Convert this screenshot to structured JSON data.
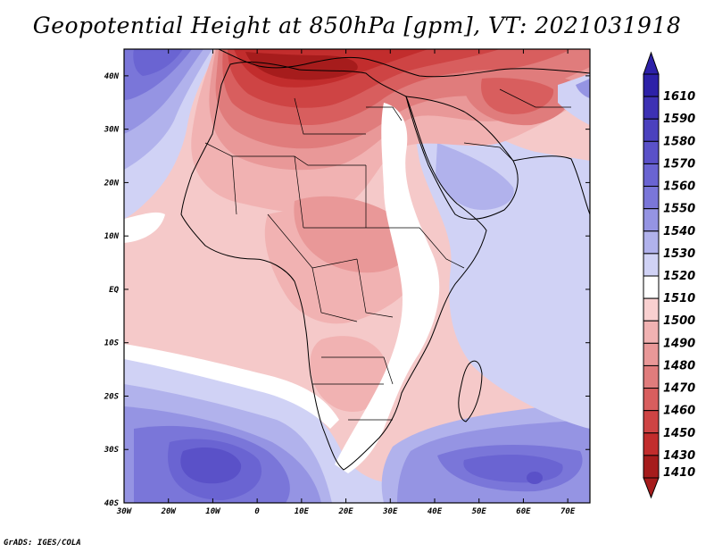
{
  "title": "Geopotential Height at 850hPa [gpm], VT: 2021031918",
  "credit": "GrADS: IGES/COLA",
  "map": {
    "lat_labels": [
      "40N",
      "30N",
      "20N",
      "10N",
      "EQ",
      "10S",
      "20S",
      "30S",
      "40S"
    ],
    "lon_labels": [
      "30W",
      "20W",
      "10W",
      "0",
      "10E",
      "20E",
      "30E",
      "40E",
      "50E",
      "60E",
      "70E"
    ],
    "lat_range": [
      -40,
      45
    ],
    "lon_range": [
      -30,
      75
    ]
  },
  "colorbar": {
    "levels": [
      {
        "label": "1610",
        "color": "#2d21a8"
      },
      {
        "label": "1590",
        "color": "#3d31b4"
      },
      {
        "label": "1580",
        "color": "#4b41be"
      },
      {
        "label": "1570",
        "color": "#5a51c8"
      },
      {
        "label": "1560",
        "color": "#6a64d2"
      },
      {
        "label": "1550",
        "color": "#7a76d9"
      },
      {
        "label": "1540",
        "color": "#9594e3"
      },
      {
        "label": "1530",
        "color": "#b1b2ec"
      },
      {
        "label": "1520",
        "color": "#d0d2f5"
      },
      {
        "label": "1510",
        "color": "#ffffff"
      },
      {
        "label": "1500",
        "color": "#f9d0d0"
      },
      {
        "label": "1490",
        "color": "#f1b2b2"
      },
      {
        "label": "1480",
        "color": "#e99898"
      },
      {
        "label": "1470",
        "color": "#e07c7c"
      },
      {
        "label": "1460",
        "color": "#d85e5e"
      },
      {
        "label": "1450",
        "color": "#ce4444"
      },
      {
        "label": "1430",
        "color": "#c22d2d"
      },
      {
        "label": "1410",
        "color": "#a61c1c"
      }
    ]
  }
}
